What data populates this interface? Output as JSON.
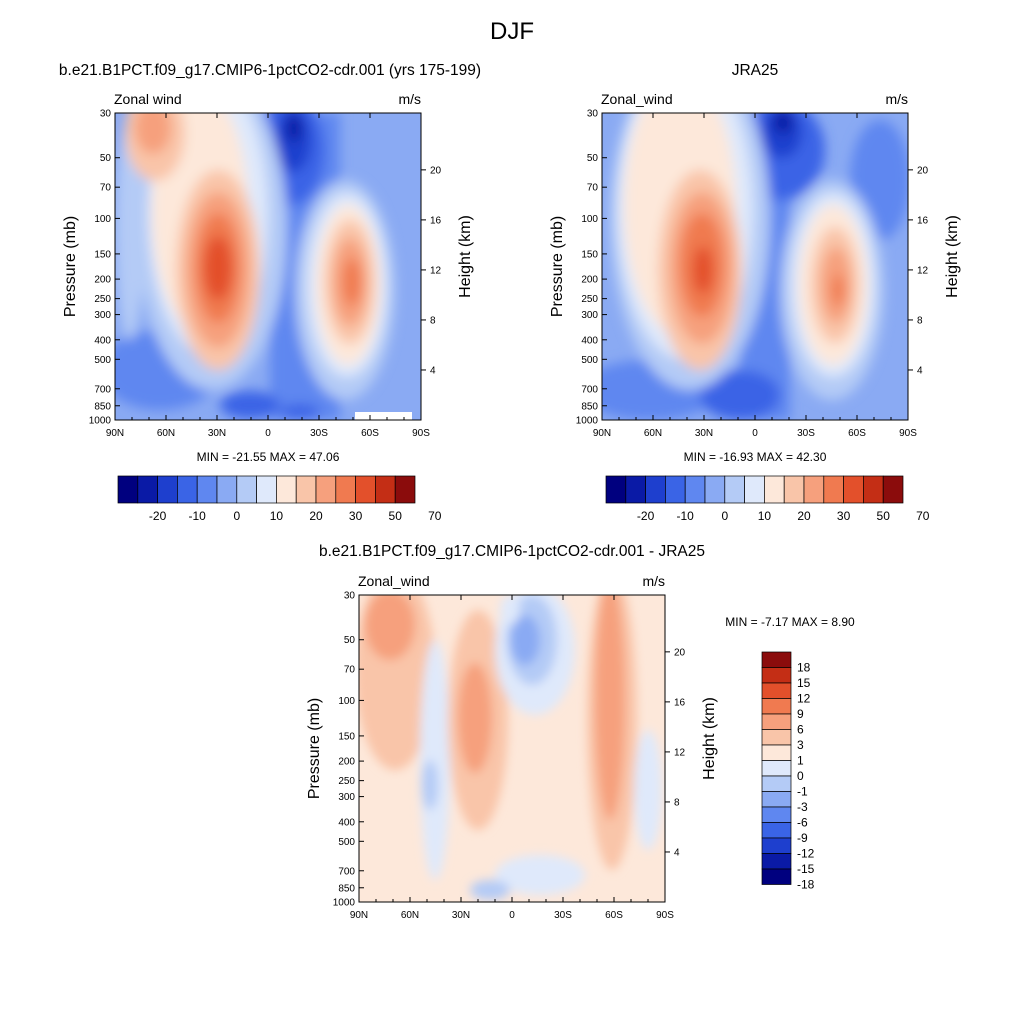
{
  "figure": {
    "title": "DJF"
  },
  "chart_data": [
    {
      "type": "heatmap",
      "title": "b.e21.B1PCT.f09_g17.CMIP6-1pctCO2-cdr.001 (yrs 175-199)",
      "left_label": "Zonal wind",
      "right_label": "m/s",
      "xlabel": "",
      "ylabel": "Pressure (mb)",
      "ylabel_right": "Height (km)",
      "x_ticks": [
        "90N",
        "60N",
        "30N",
        "0",
        "30S",
        "60S",
        "90S"
      ],
      "xlim": [
        90,
        -90
      ],
      "y_scale": "log",
      "ylim": [
        1000,
        30
      ],
      "y_ticks": [
        "30",
        "50",
        "70",
        "100",
        "150",
        "200",
        "250",
        "300",
        "400",
        "500",
        "700",
        "850",
        "1000"
      ],
      "right_ticks": [
        "4",
        "8",
        "12",
        "16",
        "20"
      ],
      "stats": "MIN = -21.55  MAX =  47.06",
      "colorbar_labels": [
        "-20",
        "-10",
        "0",
        "10",
        "20",
        "30",
        "50",
        "70"
      ],
      "jets": [
        {
          "lat": 30,
          "p": 200,
          "value": 47.06
        },
        {
          "lat": -47,
          "p": 230,
          "value": 40
        },
        {
          "lat": 72,
          "p": 32,
          "value": 30
        }
      ],
      "min_point": {
        "lat": -10,
        "p": 35,
        "value": -21.55
      }
    },
    {
      "type": "heatmap",
      "title": "JRA25",
      "left_label": "Zonal_wind",
      "right_label": "m/s",
      "xlabel": "",
      "ylabel": "Pressure (mb)",
      "ylabel_right": "Height (km)",
      "x_ticks": [
        "90N",
        "60N",
        "30N",
        "0",
        "30S",
        "60S",
        "90S"
      ],
      "xlim": [
        90,
        -90
      ],
      "y_scale": "log",
      "ylim": [
        1000,
        30
      ],
      "y_ticks": [
        "30",
        "50",
        "70",
        "100",
        "150",
        "200",
        "250",
        "300",
        "400",
        "500",
        "700",
        "850",
        "1000"
      ],
      "right_ticks": [
        "4",
        "8",
        "12",
        "16",
        "20"
      ],
      "stats": "MIN = -16.93  MAX =  42.30",
      "colorbar_labels": [
        "-20",
        "-10",
        "0",
        "10",
        "20",
        "30",
        "50",
        "70"
      ],
      "jets": [
        {
          "lat": 31,
          "p": 200,
          "value": 42.3
        },
        {
          "lat": -45,
          "p": 230,
          "value": 33
        },
        {
          "lat": 70,
          "p": 35,
          "value": 20
        }
      ],
      "min_point": {
        "lat": -15,
        "p": 33,
        "value": -16.93
      }
    },
    {
      "type": "heatmap",
      "title": "b.e21.B1PCT.f09_g17.CMIP6-1pctCO2-cdr.001 - JRA25",
      "left_label": "Zonal_wind",
      "right_label": "m/s",
      "xlabel": "",
      "ylabel": "Pressure (mb)",
      "ylabel_right": "Height (km)",
      "x_ticks": [
        "90N",
        "60N",
        "30N",
        "0",
        "30S",
        "60S",
        "90S"
      ],
      "xlim": [
        90,
        -90
      ],
      "y_scale": "log",
      "ylim": [
        1000,
        30
      ],
      "y_ticks": [
        "30",
        "50",
        "70",
        "100",
        "150",
        "200",
        "250",
        "300",
        "400",
        "500",
        "700",
        "850",
        "1000"
      ],
      "right_ticks": [
        "4",
        "8",
        "12",
        "16",
        "20"
      ],
      "stats": "MIN =  -7.17  MAX =   8.90",
      "colorbar_labels": [
        "18",
        "15",
        "12",
        "9",
        "6",
        "3",
        "1",
        "0",
        "-1",
        "-3",
        "-6",
        "-9",
        "-12",
        "-15",
        "-18"
      ]
    }
  ],
  "colorbar_colors": [
    "#00007f",
    "#0a1aa6",
    "#1e3fce",
    "#3a64e6",
    "#5f87f0",
    "#8aaaf3",
    "#b4cbf6",
    "#dfe9fb",
    "#fde8da",
    "#f9c5a9",
    "#f6a07d",
    "#f07a50",
    "#e3502b",
    "#c42e15",
    "#8b0c0c"
  ]
}
